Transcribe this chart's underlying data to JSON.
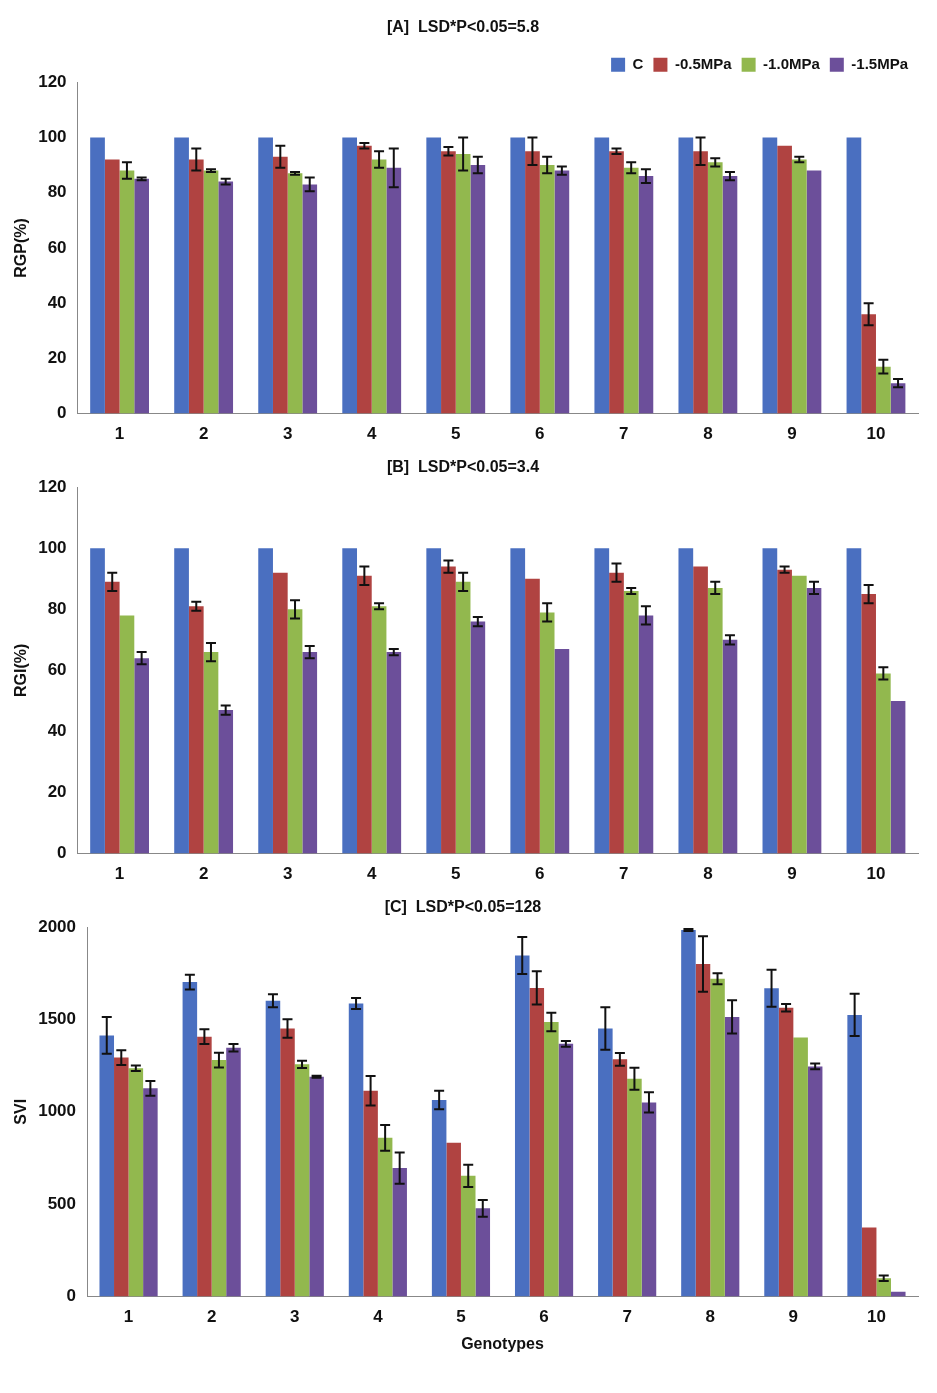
{
  "chart_data": [
    {
      "type": "bar",
      "title": "[A]  LSD*P<0.05=5.8",
      "ylabel": "RGP(%)",
      "categories": [
        "1",
        "2",
        "3",
        "4",
        "5",
        "6",
        "7",
        "8",
        "9",
        "10"
      ],
      "ylim": [
        0,
        120
      ],
      "yticks": [
        0,
        20,
        40,
        60,
        80,
        100,
        120
      ],
      "grid": false,
      "legend": "top right",
      "series": [
        {
          "name": "C",
          "color": "#4a6fc0",
          "values": [
            100,
            100,
            100,
            100,
            100,
            100,
            100,
            100,
            100,
            100
          ]
        },
        {
          "name": "-0.5MPa",
          "color": "#b04341",
          "values": [
            92,
            92,
            93,
            97,
            95,
            95,
            95,
            95,
            97,
            36
          ],
          "errors": [
            null,
            4,
            4,
            1,
            1.5,
            5,
            1,
            5,
            null,
            4
          ]
        },
        {
          "name": "-1.0MPa",
          "color": "#92b84e",
          "values": [
            88,
            88,
            87,
            92,
            94,
            90,
            89,
            91,
            92,
            17
          ],
          "errors": [
            3,
            0.5,
            0.5,
            3,
            6,
            3,
            2,
            1.5,
            1,
            2.5
          ]
        },
        {
          "name": "-1.5MPa",
          "color": "#6c4f9a",
          "values": [
            85,
            84,
            83,
            89,
            90,
            88,
            86,
            86,
            88,
            11
          ],
          "errors": [
            0.5,
            1,
            2.5,
            7,
            3,
            1.5,
            2.5,
            1.5,
            null,
            1.5
          ]
        }
      ]
    },
    {
      "type": "bar",
      "title": "[B]  LSD*P<0.05=3.4",
      "ylabel": "RGI(%)",
      "categories": [
        "1",
        "2",
        "3",
        "4",
        "5",
        "6",
        "7",
        "8",
        "9",
        "10"
      ],
      "ylim": [
        0,
        120
      ],
      "yticks": [
        0,
        20,
        40,
        60,
        80,
        100,
        120
      ],
      "grid": false,
      "series": [
        {
          "color": "#4a6fc0",
          "values": [
            100,
            100,
            100,
            100,
            100,
            100,
            100,
            100,
            100,
            100
          ]
        },
        {
          "color": "#b04341",
          "values": [
            89,
            81,
            92,
            91,
            94,
            90,
            92,
            94,
            93,
            85
          ],
          "errors": [
            3,
            1.5,
            null,
            3,
            2,
            null,
            3,
            null,
            1,
            3
          ]
        },
        {
          "color": "#92b84e",
          "values": [
            78,
            66,
            80,
            81,
            89,
            79,
            86,
            87,
            91,
            59
          ],
          "errors": [
            null,
            3,
            3,
            1,
            3,
            3,
            1,
            2,
            null,
            2
          ]
        },
        {
          "color": "#6c4f9a",
          "values": [
            64,
            47,
            66,
            66,
            76,
            67,
            78,
            70,
            87,
            50
          ],
          "errors": [
            2,
            1.5,
            2,
            1,
            1.5,
            null,
            3,
            1.5,
            2,
            null
          ]
        }
      ]
    },
    {
      "type": "bar",
      "title": "[C]  LSD*P<0.05=128",
      "xlabel": "Genotypes",
      "ylabel": "SVI",
      "categories": [
        "1",
        "2",
        "3",
        "4",
        "5",
        "6",
        "7",
        "8",
        "9",
        "10"
      ],
      "ylim": [
        0,
        2000
      ],
      "yticks": [
        0,
        500,
        1000,
        1500,
        2000
      ],
      "grid": false,
      "series": [
        {
          "color": "#4a6fc0",
          "values": [
            1414,
            1703,
            1602,
            1587,
            1064,
            1847,
            1451,
            1985,
            1669,
            1525
          ],
          "errors": [
            100,
            40,
            35,
            30,
            50,
            100,
            115,
            5,
            100,
            115
          ]
        },
        {
          "color": "#b04341",
          "values": [
            1294,
            1407,
            1451,
            1114,
            833,
            1671,
            1284,
            1801,
            1564,
            373
          ],
          "errors": [
            40,
            40,
            50,
            80,
            null,
            90,
            35,
            150,
            20,
            null
          ]
        },
        {
          "color": "#92b84e",
          "values": [
            1236,
            1280,
            1257,
            859,
            653,
            1487,
            1179,
            1721,
            1403,
            98
          ],
          "errors": [
            15,
            40,
            20,
            70,
            60,
            50,
            60,
            30,
            null,
            15
          ]
        },
        {
          "color": "#6c4f9a",
          "values": [
            1127,
            1347,
            1190,
            695,
            477,
            1368,
            1051,
            1514,
            1246,
            25
          ],
          "errors": [
            40,
            20,
            5,
            85,
            45,
            15,
            55,
            90,
            15,
            null
          ]
        }
      ]
    }
  ]
}
